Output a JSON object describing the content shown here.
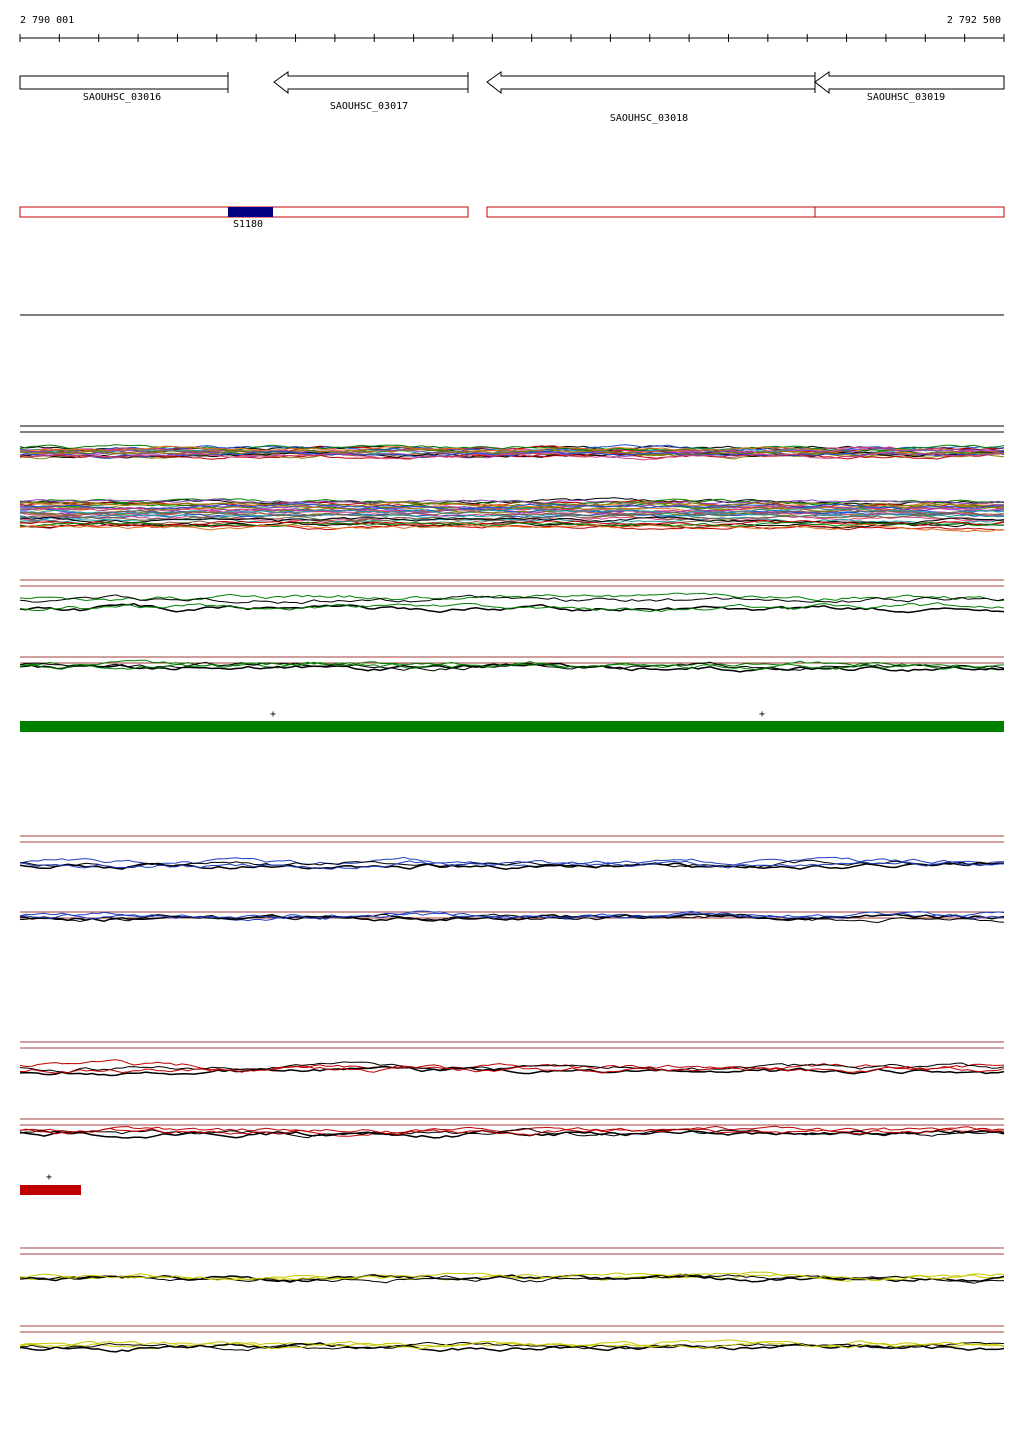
{
  "ruler": {
    "start": "2 790 001",
    "end": "2 792 500"
  },
  "genes": [
    {
      "label": "SAOUHSC_03016"
    },
    {
      "label": "SAOUHSC_03017"
    },
    {
      "label": "SAOUHSC_03018"
    },
    {
      "label": "SAOUHSC_03019"
    }
  ],
  "features": [
    {
      "label": "S1180"
    }
  ],
  "strand_marks": [
    "+",
    "+",
    "+"
  ]
}
